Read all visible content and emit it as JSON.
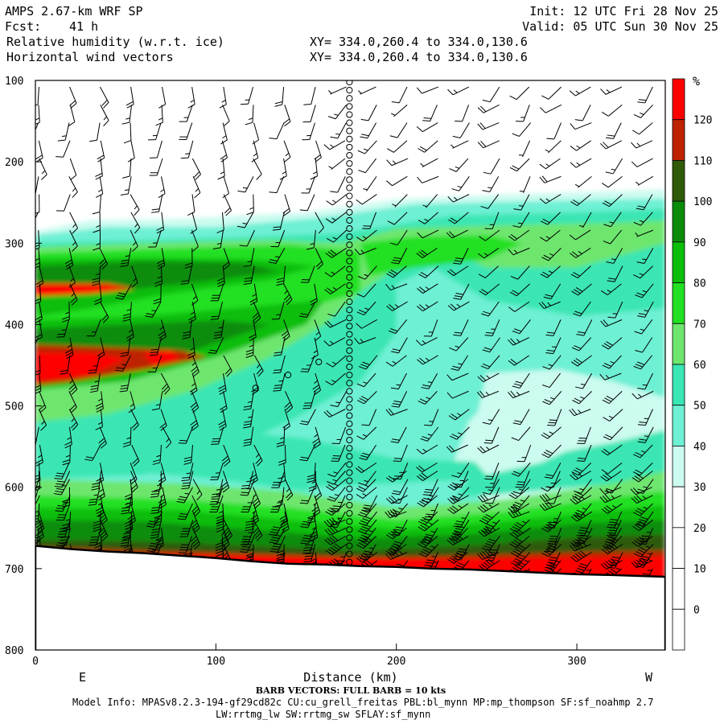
{
  "header": {
    "model": "AMPS 2.67-km WRF SP",
    "forecast_label": "Fcst:",
    "forecast_value": "41 h",
    "field_1": "Relative humidity (w.r.t. ice)",
    "field_2": "Horizontal wind vectors",
    "init": "Init: 12 UTC Fri 28 Nov 25",
    "valid": "Valid: 05 UTC Sun 30 Nov 25",
    "xy_1": "XY= 334.0,260.4 to 334.0,130.6",
    "xy_2": "XY= 334.0,260.4 to 334.0,130.6"
  },
  "footer": {
    "barb_note": "BARB VECTORS: FULL BARB = 10 kts",
    "model_info": "Model Info: MPASv8.2.3-194-gf29cd82c CU:cu_grell_freitas PBL:bl_mynn MP:mp_thompson SF:sf_noahmp 2.7",
    "model_info_2": "LW:rrtmg_lw SW:rrtmg_sw SFLAY:sf_mynn"
  },
  "colors": {
    "rh_30": "#ccfbf0",
    "rh_40": "#6ef0d4",
    "rh_50": "#3ae6b4",
    "rh_60": "#6ee66e",
    "rh_70": "#22e022",
    "rh_80": "#0abe0a",
    "rh_90": "#0a8c0a",
    "rh_100": "#2e5a0a",
    "rh_110": "#be2200",
    "rh_120": "#ff0000"
  },
  "chart_data": {
    "type": "heatmap",
    "title": "Relative humidity (w.r.t. ice)",
    "xlabel": "Distance (km)",
    "ylabel": "",
    "x_end_labels": [
      "E",
      "W"
    ],
    "xlim": [
      0,
      349
    ],
    "ylim": [
      100,
      800
    ],
    "y_inverted": true,
    "x_ticks": [
      0,
      100,
      200,
      300
    ],
    "y_ticks": [
      100,
      200,
      300,
      400,
      500,
      600,
      700,
      800
    ],
    "colorbar": {
      "unit": "%",
      "levels": [
        0,
        10,
        20,
        30,
        40,
        50,
        60,
        70,
        80,
        90,
        100,
        110,
        120
      ],
      "colors": [
        "#ffffff",
        "#ffffff",
        "#ffffff",
        "#ccfbf0",
        "#6ef0d4",
        "#3ae6b4",
        "#6ee66e",
        "#22e022",
        "#0abe0a",
        "#0a8c0a",
        "#2e5a0a",
        "#be2200",
        "#ff0000"
      ]
    },
    "surface_pressure": {
      "x": [
        0,
        20,
        40,
        60,
        80,
        100,
        120,
        140,
        160,
        180,
        200,
        220,
        240,
        260,
        280,
        300,
        320,
        349
      ],
      "p": [
        672,
        676,
        679,
        681,
        684,
        687,
        691,
        694,
        695,
        697,
        698,
        700,
        701,
        703,
        705,
        707,
        708,
        710
      ]
    },
    "wind_barbs": "horizontal wind barbs on pressure levels along the cross-section"
  }
}
